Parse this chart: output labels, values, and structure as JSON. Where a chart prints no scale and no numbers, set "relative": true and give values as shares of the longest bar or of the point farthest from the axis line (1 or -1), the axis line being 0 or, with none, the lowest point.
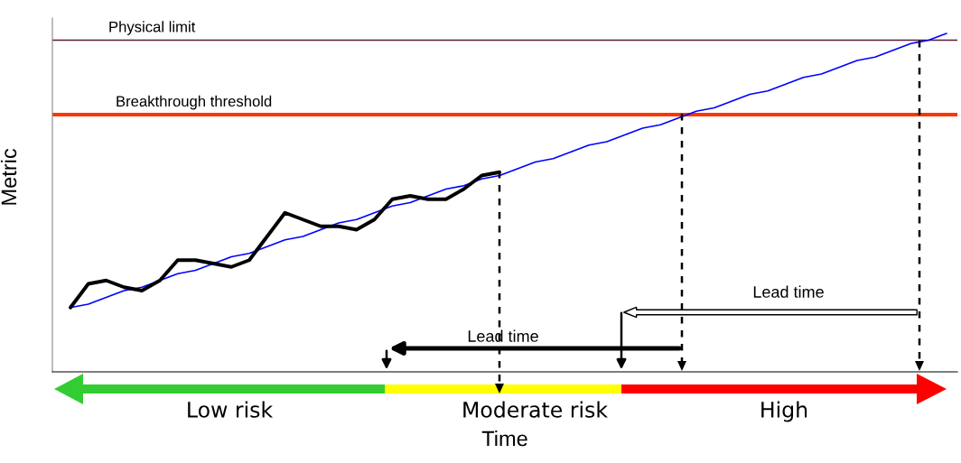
{
  "chart_data": {
    "type": "line",
    "relative": true,
    "xlabel": "Time",
    "ylabel": "Metric",
    "categories": [
      null,
      null,
      null,
      null,
      null,
      null,
      null,
      null,
      null,
      null,
      null,
      null,
      null,
      null,
      null,
      null,
      null,
      null,
      null,
      null,
      null,
      null,
      null,
      null,
      null,
      null,
      null,
      null,
      null,
      null,
      null,
      null,
      null,
      null,
      null,
      null,
      null,
      null,
      null,
      null,
      null,
      null,
      null,
      null,
      null,
      null,
      null,
      null,
      null,
      null
    ],
    "series": [
      {
        "color": "#0000ff",
        "values": [
          0.19,
          0.2,
          0.22,
          0.24,
          0.25,
          0.27,
          0.29,
          0.3,
          0.32,
          0.34,
          0.35,
          0.37,
          0.39,
          0.4,
          0.42,
          0.44,
          0.45,
          0.47,
          0.49,
          0.5,
          0.52,
          0.54,
          0.55,
          0.57,
          0.58,
          0.6,
          0.62,
          0.63,
          0.65,
          0.67,
          0.68,
          0.7,
          0.72,
          0.73,
          0.75,
          0.77,
          0.78,
          0.8,
          0.82,
          0.83,
          0.85,
          0.87,
          0.88,
          0.9,
          0.92,
          0.93,
          0.95,
          0.97,
          0.98,
          1.0
        ]
      },
      {
        "color": "#000000",
        "values": [
          0.19,
          0.26,
          0.27,
          0.25,
          0.24,
          0.27,
          0.33,
          0.33,
          0.32,
          0.31,
          0.33,
          0.4,
          0.47,
          0.45,
          0.43,
          0.43,
          0.42,
          0.45,
          0.51,
          0.52,
          0.51,
          0.51,
          0.54,
          0.58,
          0.59,
          null,
          null,
          null,
          null,
          null,
          null,
          null,
          null,
          null,
          null,
          null,
          null,
          null,
          null,
          null,
          null,
          null,
          null,
          null,
          null,
          null,
          null,
          null,
          null,
          null
        ]
      }
    ],
    "ref_lines": [
      {
        "axis": "y",
        "value": 0.98,
        "label": "Physical limit",
        "color": "#5a1a3a"
      },
      {
        "axis": "y",
        "value": 0.76,
        "label": "Breakthrough threshold",
        "color": "#ff3300"
      }
    ],
    "annotations": [
      "Lead time",
      "Lead time",
      "Low risk",
      "Moderate risk",
      "High"
    ],
    "legend": false,
    "marker": "none",
    "line_style": "solid"
  }
}
